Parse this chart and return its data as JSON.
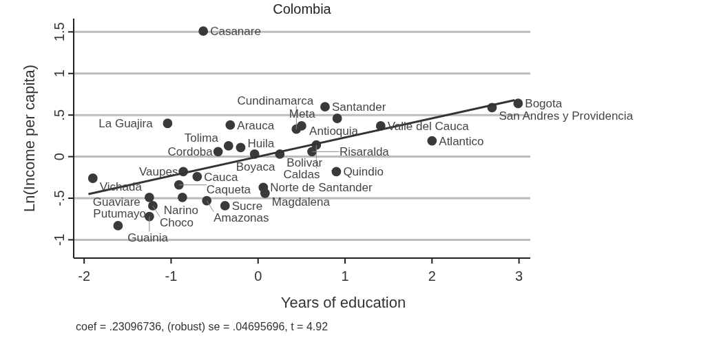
{
  "chart_data": {
    "type": "scatter",
    "title": "Colombia",
    "xlabel": "Years of education",
    "ylabel": "Ln(Income per capita)",
    "xlim": [
      -2.12,
      3.13
    ],
    "ylim": [
      -1.22,
      1.66
    ],
    "xticks": [
      -2,
      -1,
      0,
      1,
      2,
      3
    ],
    "yticks": [
      {
        "value": -1,
        "label": "-1"
      },
      {
        "value": -0.5,
        "label": "-.5"
      },
      {
        "value": 0,
        "label": "0"
      },
      {
        "value": 0.5,
        "label": ".5"
      },
      {
        "value": 1,
        "label": "1"
      },
      {
        "value": 1.5,
        "label": "1.5"
      }
    ],
    "grid": "y",
    "marker": "circle",
    "series": [
      {
        "color": "#3a3a3a",
        "x": [
          -0.63,
          0.77,
          0.91,
          2.99,
          2.69,
          1.41,
          2.0,
          -0.32,
          0.5,
          0.44,
          -1.04,
          -0.46,
          -0.34,
          -0.2,
          -0.04,
          0.25,
          0.62,
          0.67,
          0.9,
          -0.86,
          -1.9,
          -0.7,
          -0.91,
          0.06,
          0.08,
          -1.25,
          -0.87,
          -0.59,
          -0.38,
          -1.21,
          -1.25,
          -1.61
        ],
        "values": [
          1.51,
          0.6,
          0.46,
          0.64,
          0.59,
          0.37,
          0.19,
          0.38,
          0.37,
          0.33,
          0.4,
          0.06,
          0.13,
          0.11,
          0.03,
          0.03,
          0.06,
          0.14,
          -0.18,
          -0.18,
          -0.26,
          -0.24,
          -0.34,
          -0.37,
          -0.44,
          -0.49,
          -0.49,
          -0.53,
          -0.59,
          -0.59,
          -0.72,
          -0.83
        ]
      },
      {
        "type": "line",
        "marker": "none",
        "color": "#333333",
        "x": [
          -1.95,
          2.95
        ],
        "values": [
          -0.45,
          0.68
        ]
      }
    ],
    "annotations": [
      {
        "text": "Casanare",
        "x": -0.63,
        "y": 1.51
      },
      {
        "text": "Santander",
        "x": 0.77,
        "y": 0.6
      },
      {
        "text": "Antioquia",
        "x": 0.91,
        "y": 0.46
      },
      {
        "text": "Bogota",
        "x": 2.99,
        "y": 0.64
      },
      {
        "text": "San Andres y Providencia",
        "x": 2.69,
        "y": 0.59
      },
      {
        "text": "Valle del Cauca",
        "x": 1.41,
        "y": 0.37
      },
      {
        "text": "Atlantico",
        "x": 2.0,
        "y": 0.19
      },
      {
        "text": "Arauca",
        "x": -0.32,
        "y": 0.38
      },
      {
        "text": "Meta",
        "x": 0.5,
        "y": 0.37
      },
      {
        "text": "Cundinamarca",
        "x": 0.44,
        "y": 0.33
      },
      {
        "text": "La Guajira",
        "x": -1.04,
        "y": 0.4
      },
      {
        "text": "Cordoba",
        "x": -0.46,
        "y": 0.06
      },
      {
        "text": "Tolima",
        "x": -0.34,
        "y": 0.13
      },
      {
        "text": "Huila",
        "x": -0.2,
        "y": 0.11
      },
      {
        "text": "Boyaca",
        "x": -0.04,
        "y": 0.03
      },
      {
        "text": "Bolivar",
        "x": 0.25,
        "y": 0.03
      },
      {
        "text": "Risaralda",
        "x": 0.62,
        "y": 0.06
      },
      {
        "text": "Caldas",
        "x": 0.67,
        "y": 0.14
      },
      {
        "text": "Quindio",
        "x": 0.9,
        "y": -0.18
      },
      {
        "text": "Vaupes",
        "x": -0.86,
        "y": -0.18
      },
      {
        "text": "Vichada",
        "x": -1.9,
        "y": -0.26
      },
      {
        "text": "Cauca",
        "x": -0.7,
        "y": -0.24
      },
      {
        "text": "Caqueta",
        "x": -0.91,
        "y": -0.34
      },
      {
        "text": "Norte de Santander",
        "x": 0.06,
        "y": -0.37
      },
      {
        "text": "Magdalena",
        "x": 0.08,
        "y": -0.44
      },
      {
        "text": "Guaviare",
        "x": -1.25,
        "y": -0.49
      },
      {
        "text": "Narino",
        "x": -0.87,
        "y": -0.49
      },
      {
        "text": "Amazonas",
        "x": -0.59,
        "y": -0.53
      },
      {
        "text": "Sucre",
        "x": -0.38,
        "y": -0.59
      },
      {
        "text": "Choco",
        "x": -1.21,
        "y": -0.59
      },
      {
        "text": "Guainia",
        "x": -1.25,
        "y": -0.72
      },
      {
        "text": "Putumayo",
        "x": -1.61,
        "y": -0.83
      },
      "coef = .23096736, (robust) se = .04695696, t = 4.92"
    ]
  }
}
